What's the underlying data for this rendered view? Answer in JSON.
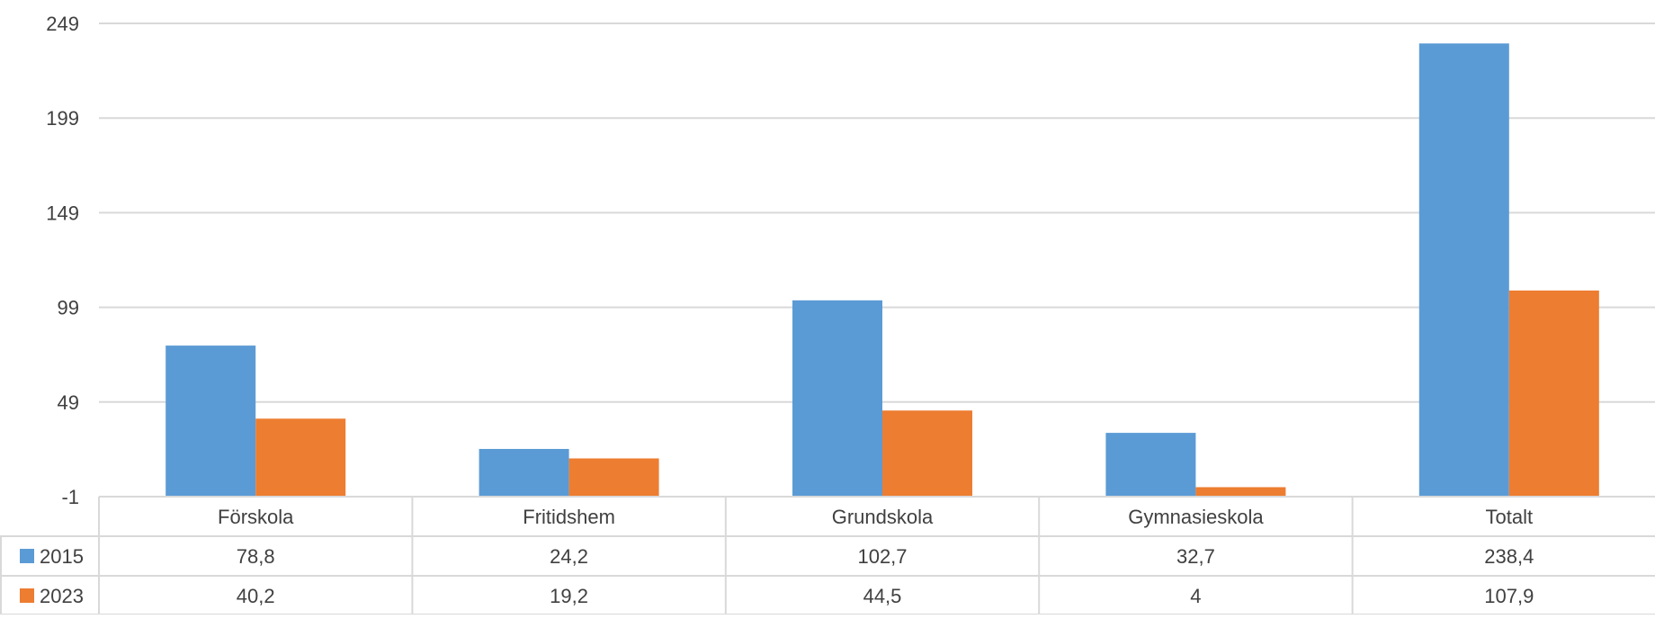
{
  "chart_data": {
    "type": "bar",
    "title": "",
    "xlabel": "",
    "ylabel": "",
    "categories": [
      "Förskola",
      "Fritidshem",
      "Grundskola",
      "Gymnasieskola",
      "Totalt"
    ],
    "y_ticks": [
      "249",
      "199",
      "149",
      "99",
      "49",
      "-1"
    ],
    "ylim": [
      -1,
      249
    ],
    "grid": true,
    "legend_placement": "data-table",
    "series": [
      {
        "name": "2015",
        "color": "#5B9BD5",
        "values": [
          78.8,
          24.2,
          102.7,
          32.7,
          238.4
        ],
        "labels": [
          "78,8",
          "24,2",
          "102,7",
          "32,7",
          "238,4"
        ]
      },
      {
        "name": "2023",
        "color": "#ED7D31",
        "values": [
          40.2,
          19.2,
          44.5,
          4,
          107.9
        ],
        "labels": [
          "40,2",
          "19,2",
          "44,5",
          "4",
          "107,9"
        ]
      }
    ]
  }
}
